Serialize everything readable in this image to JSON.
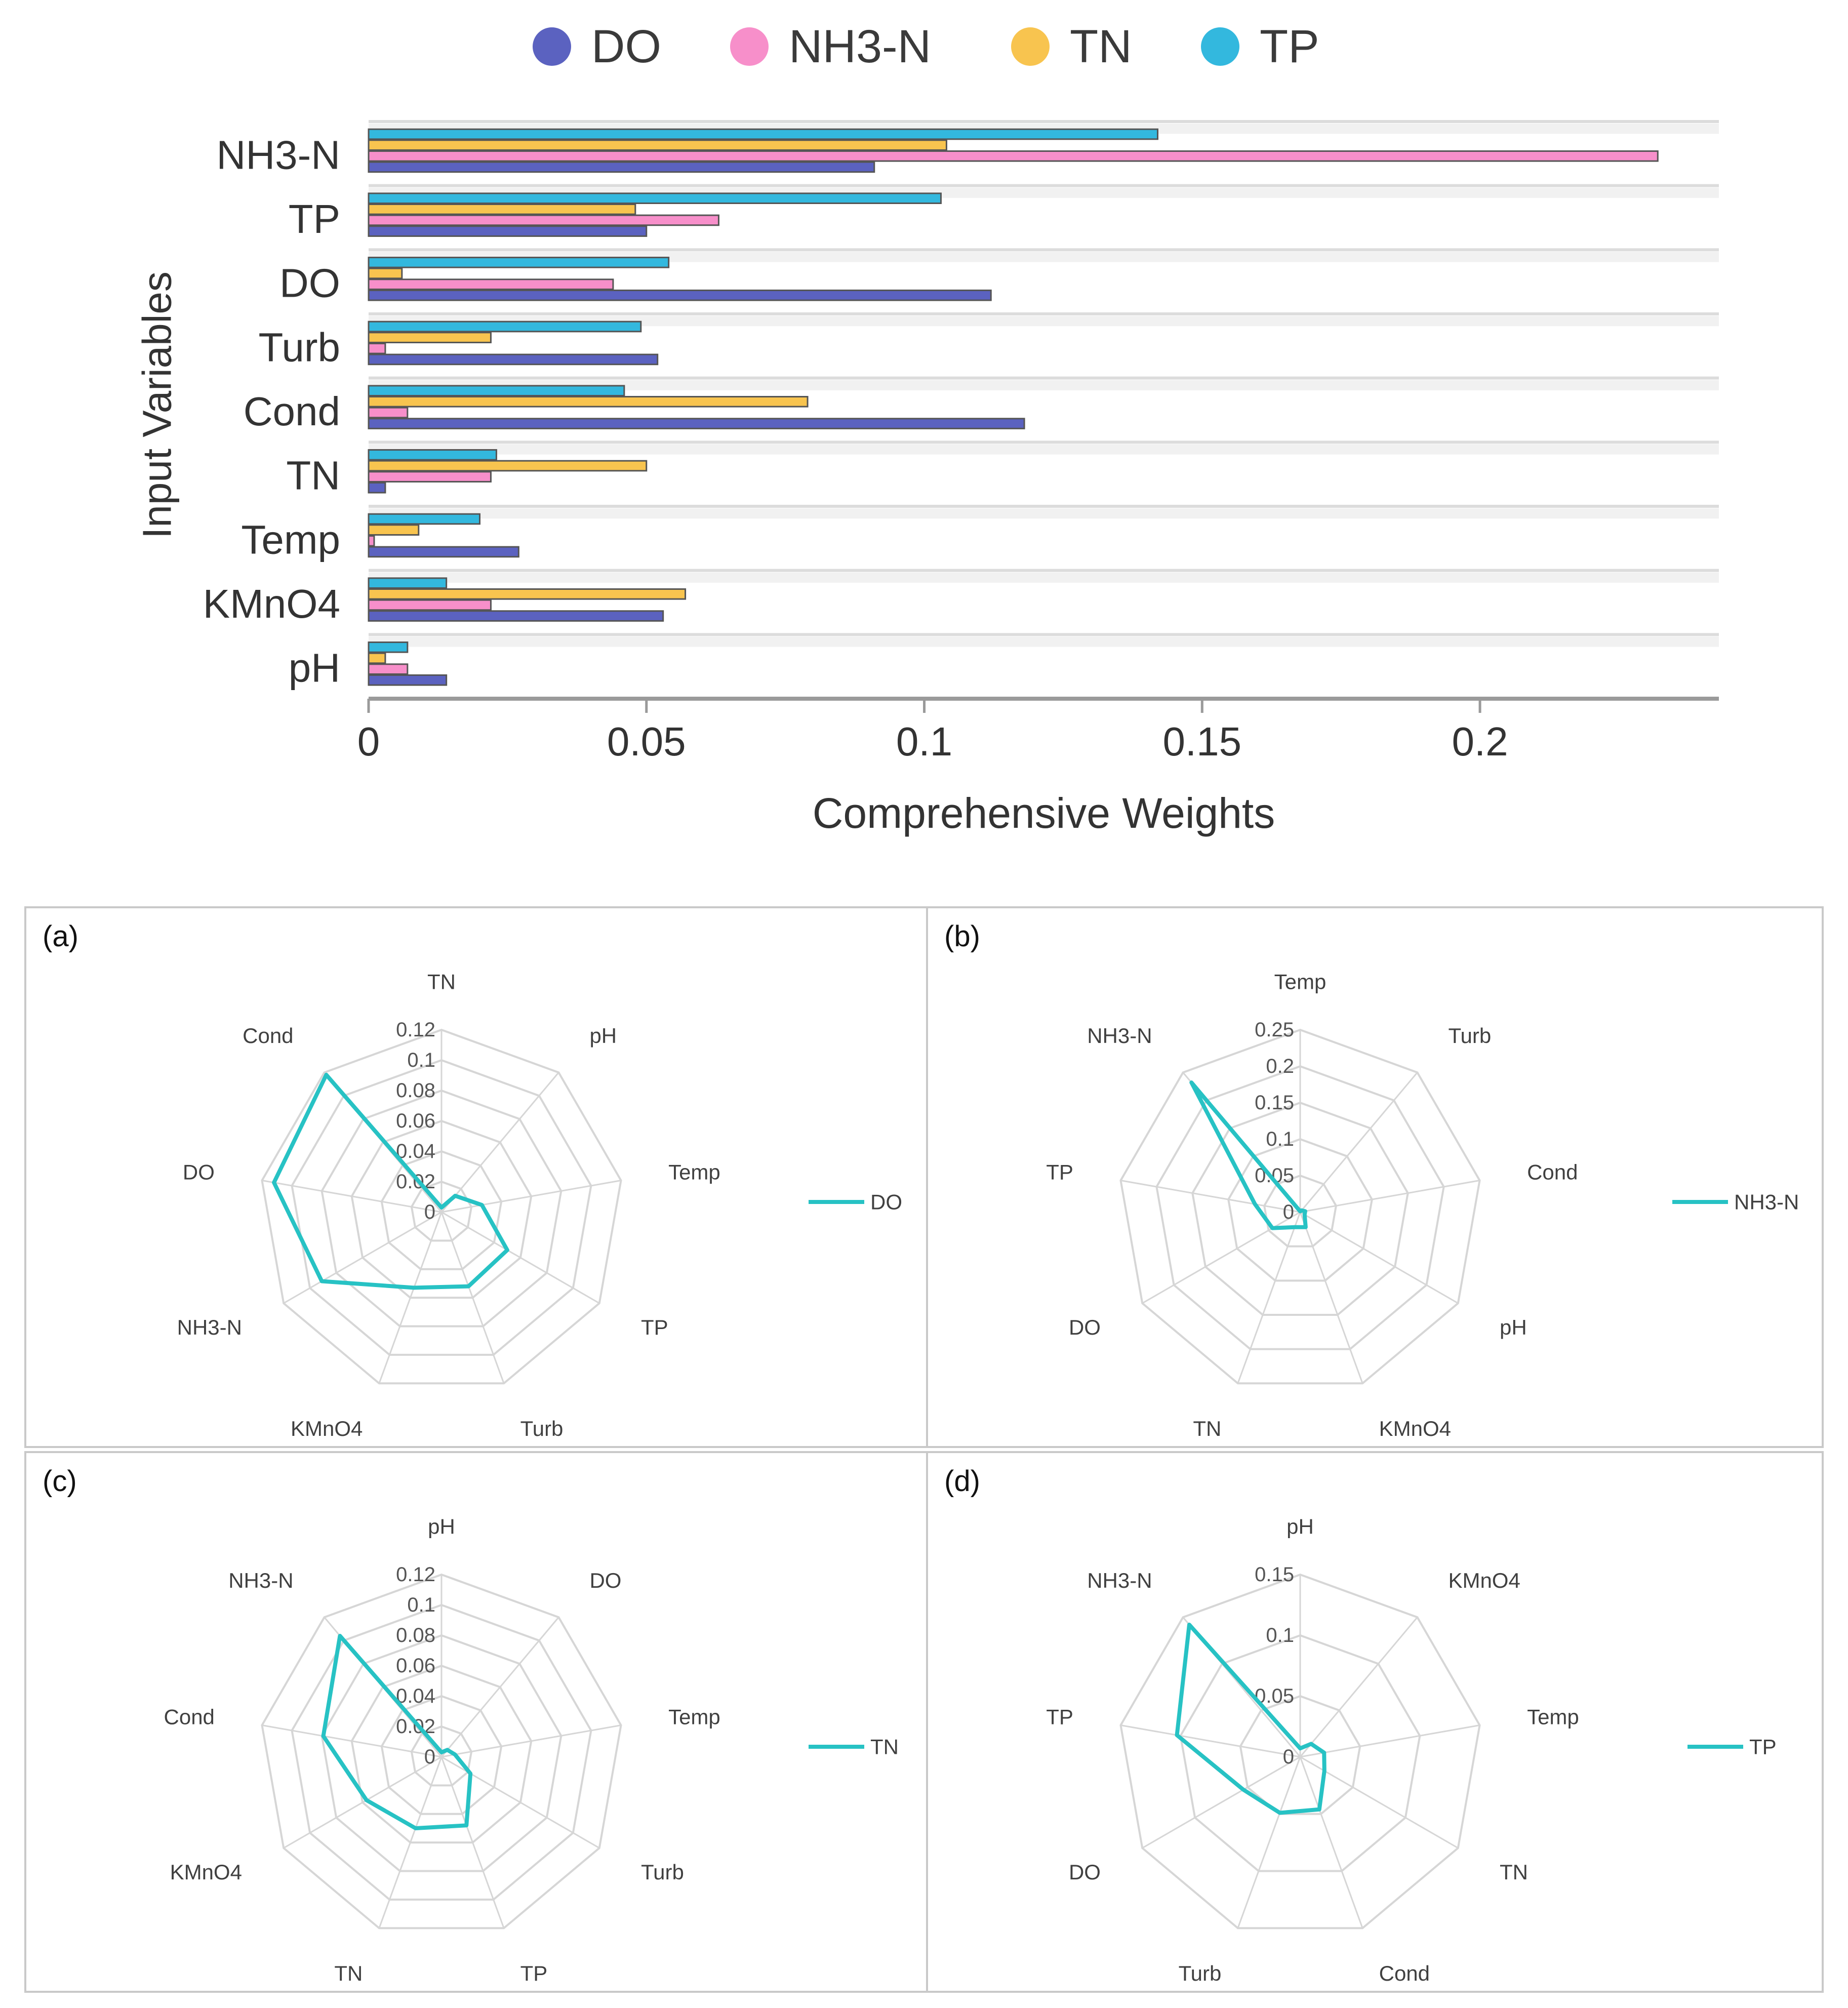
{
  "colors": {
    "DO": "#5b62c0",
    "NH3-N": "#f78fca",
    "TN": "#f8c44f",
    "TP": "#33b8de",
    "radar_line": "#27c2c4",
    "grid": "#d6d6d6",
    "axis_text": "#404040"
  },
  "chart_data": [
    {
      "type": "bar",
      "orientation": "horizontal",
      "categories": [
        "NH3-N",
        "TP",
        "DO",
        "Turb",
        "Cond",
        "TN",
        "Temp",
        "KMnO4",
        "pH"
      ],
      "series": [
        {
          "name": "DO",
          "values": [
            0.091,
            0.05,
            0.112,
            0.052,
            0.118,
            0.003,
            0.027,
            0.053,
            0.014
          ]
        },
        {
          "name": "NH3-N",
          "values": [
            0.232,
            0.063,
            0.044,
            0.003,
            0.007,
            0.022,
            0.001,
            0.022,
            0.007
          ]
        },
        {
          "name": "TN",
          "values": [
            0.104,
            0.048,
            0.006,
            0.022,
            0.079,
            0.05,
            0.009,
            0.057,
            0.003
          ]
        },
        {
          "name": "TP",
          "values": [
            0.142,
            0.103,
            0.054,
            0.049,
            0.046,
            0.023,
            0.02,
            0.014,
            0.007
          ]
        }
      ],
      "xlabel": "Comprehensive Weights",
      "ylabel": "Input Variables",
      "xlim": [
        0,
        0.243
      ],
      "xticks": [
        "0",
        "0.05",
        "0.1",
        "0.15",
        "0.2"
      ],
      "legend_position": "top-center",
      "grid": true
    },
    {
      "type": "radar",
      "panel_label": "(a)",
      "axes": [
        "TN",
        "pH",
        "Temp",
        "TP",
        "Turb",
        "KMnO4",
        "NH3-N",
        "DO",
        "Cond"
      ],
      "values": [
        0.003,
        0.014,
        0.027,
        0.05,
        0.052,
        0.053,
        0.091,
        0.112,
        0.118
      ],
      "rmax": 0.12,
      "ticks": [
        "0",
        "0.02",
        "0.04",
        "0.06",
        "0.08",
        "0.1",
        "0.12"
      ],
      "series_name": "DO"
    },
    {
      "type": "radar",
      "panel_label": "(b)",
      "axes": [
        "Temp",
        "Turb",
        "Cond",
        "pH",
        "KMnO4",
        "TN",
        "DO",
        "TP",
        "NH3-N"
      ],
      "values": [
        0.001,
        0.003,
        0.007,
        0.007,
        0.022,
        0.022,
        0.044,
        0.063,
        0.232
      ],
      "rmax": 0.25,
      "ticks": [
        "0",
        "0.05",
        "0.1",
        "0.15",
        "0.2",
        "0.25"
      ],
      "series_name": "NH3-N"
    },
    {
      "type": "radar",
      "panel_label": "(c)",
      "axes": [
        "pH",
        "DO",
        "Temp",
        "Turb",
        "TP",
        "TN",
        "KMnO4",
        "Cond",
        "NH3-N"
      ],
      "values": [
        0.003,
        0.006,
        0.009,
        0.022,
        0.048,
        0.05,
        0.057,
        0.079,
        0.104
      ],
      "rmax": 0.12,
      "ticks": [
        "0",
        "0.02",
        "0.04",
        "0.06",
        "0.08",
        "0.1",
        "0.12"
      ],
      "series_name": "TN"
    },
    {
      "type": "radar",
      "panel_label": "(d)",
      "axes": [
        "pH",
        "KMnO4",
        "Temp",
        "TN",
        "Cond",
        "Turb",
        "DO",
        "TP",
        "NH3-N"
      ],
      "values": [
        0.007,
        0.014,
        0.02,
        0.023,
        0.046,
        0.049,
        0.054,
        0.103,
        0.142
      ],
      "rmax": 0.15,
      "ticks": [
        "0",
        "0.05",
        "0.1",
        "0.15"
      ],
      "series_name": "TP"
    }
  ]
}
